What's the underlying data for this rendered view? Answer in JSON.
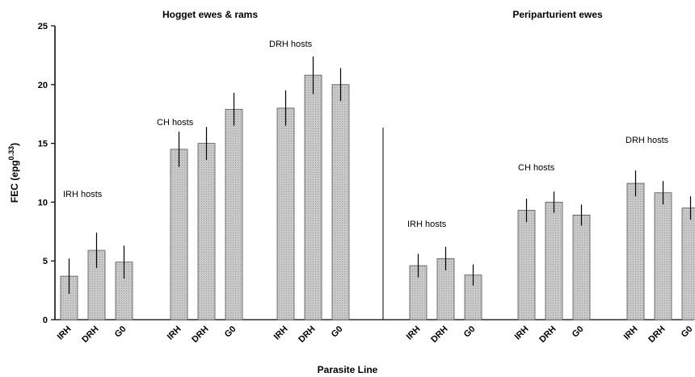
{
  "chart_data": {
    "type": "bar",
    "ylabel": "FEC (epg0.33)",
    "ylabel_main": "FEC (epg",
    "ylabel_sup": "0.33",
    "ylabel_close": ")",
    "xlabel": "Parasite Line",
    "ylim": [
      0,
      25
    ],
    "yticks": [
      0,
      5,
      10,
      15,
      20,
      25
    ],
    "grid": false,
    "panels": [
      {
        "title": "Hogget ewes & rams",
        "groups": [
          {
            "label": "IRH hosts",
            "categories": [
              "IRH",
              "DRH",
              "G0"
            ],
            "values": [
              3.7,
              5.9,
              4.9
            ],
            "errors": [
              1.5,
              1.5,
              1.4
            ]
          },
          {
            "label": "CH hosts",
            "categories": [
              "IRH",
              "DRH",
              "G0"
            ],
            "values": [
              14.5,
              15.0,
              17.9
            ],
            "errors": [
              1.5,
              1.4,
              1.4
            ]
          },
          {
            "label": "DRH hosts",
            "categories": [
              "IRH",
              "DRH",
              "G0"
            ],
            "values": [
              18.0,
              20.8,
              20.0
            ],
            "errors": [
              1.5,
              1.6,
              1.4
            ]
          }
        ]
      },
      {
        "title": "Periparturient ewes",
        "groups": [
          {
            "label": "IRH hosts",
            "categories": [
              "IRH",
              "DRH",
              "G0"
            ],
            "values": [
              4.6,
              5.2,
              3.8
            ],
            "errors": [
              1.0,
              1.0,
              0.9
            ]
          },
          {
            "label": "CH hosts",
            "categories": [
              "IRH",
              "DRH",
              "G0"
            ],
            "values": [
              9.3,
              10.0,
              8.9
            ],
            "errors": [
              1.0,
              0.9,
              0.9
            ]
          },
          {
            "label": "DRH hosts",
            "categories": [
              "IRH",
              "DRH",
              "G0"
            ],
            "values": [
              11.6,
              10.8,
              9.5
            ],
            "errors": [
              1.1,
              1.0,
              1.0
            ]
          }
        ]
      }
    ],
    "bar_color": "#c9c9c9"
  }
}
